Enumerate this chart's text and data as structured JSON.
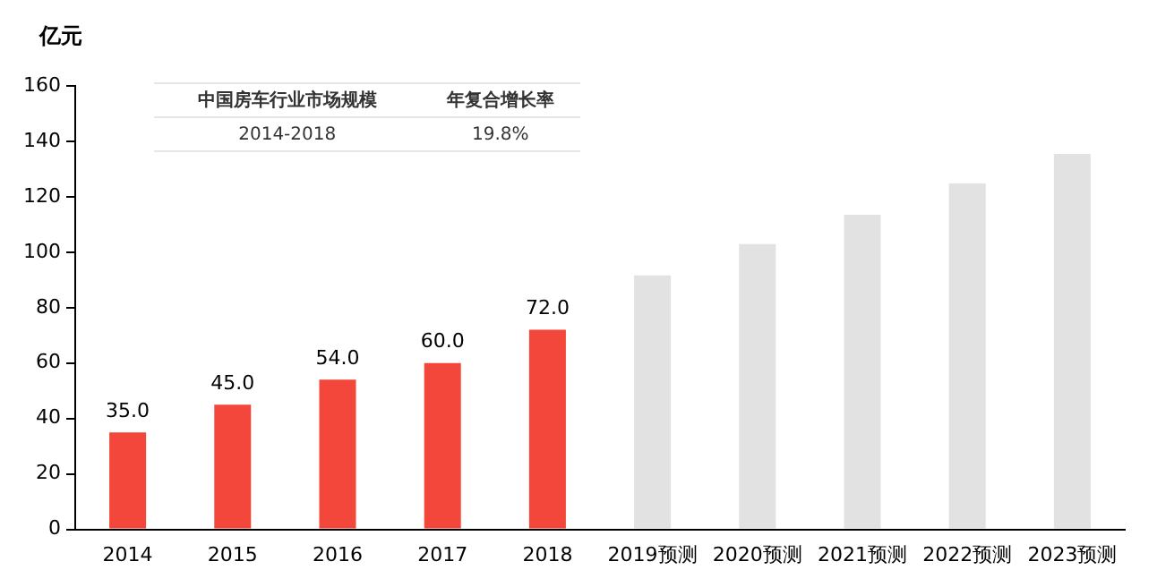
{
  "chart_data": {
    "type": "bar",
    "ylabel": "亿元",
    "categories": [
      "2014",
      "2015",
      "2016",
      "2017",
      "2018",
      "2019预测",
      "2020预测",
      "2021预测",
      "2022预测",
      "2023预测"
    ],
    "values": [
      35.0,
      45.0,
      54.0,
      60.0,
      72.0,
      91.6,
      102.9,
      113.5,
      124.8,
      135.5
    ],
    "colors": [
      "#f2473a",
      "#f2473a",
      "#f2473a",
      "#f2473a",
      "#f2473a",
      "#e2e2e2",
      "#e2e2e2",
      "#e2e2e2",
      "#e2e2e2",
      "#e2e2e2"
    ],
    "value_labels": [
      "35.0",
      "45.0",
      "54.0",
      "60.0",
      "72.0",
      null,
      null,
      null,
      null,
      null
    ],
    "ylim": [
      0,
      160
    ],
    "yticks": [
      0,
      20,
      40,
      60,
      80,
      100,
      120,
      140,
      160
    ],
    "grid": false,
    "legend": false,
    "annotations": [
      "中国房车行业市场规模",
      "年复合增长率",
      "2014-2018",
      "19.8%"
    ]
  }
}
